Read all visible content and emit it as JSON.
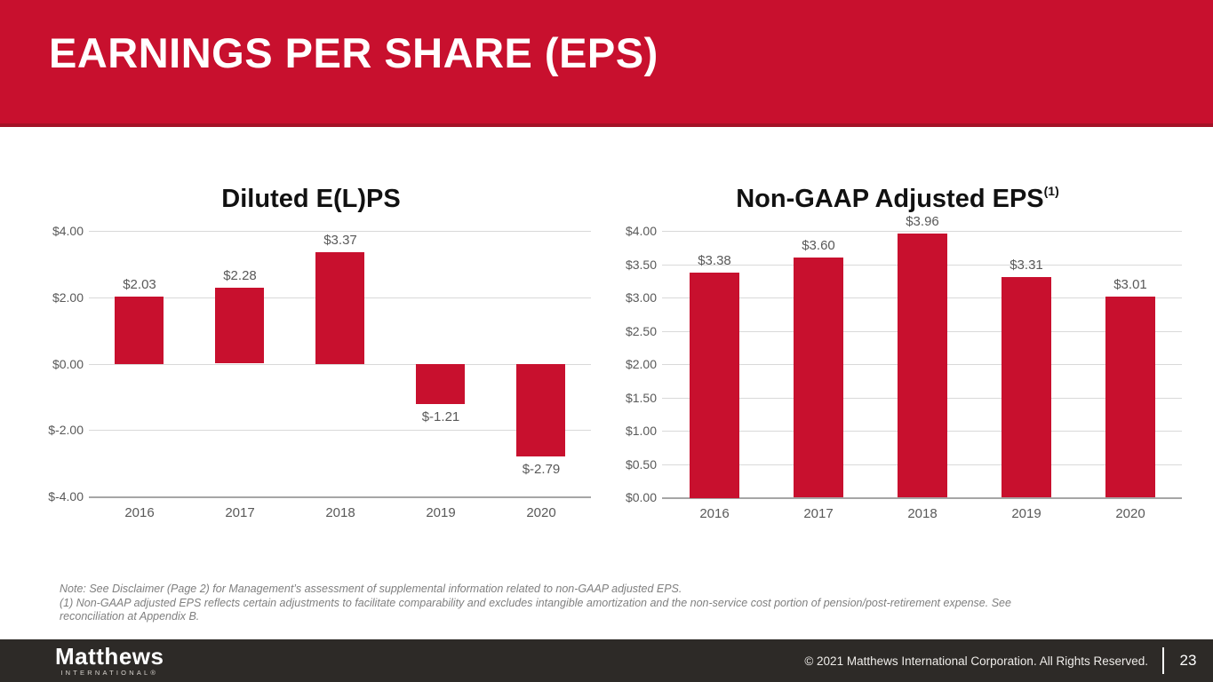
{
  "header": {
    "title": "EARNINGS PER SHARE (EPS)"
  },
  "colors": {
    "brand_red": "#C8102E",
    "banner_border": "#A31226",
    "footer_bg": "#2D2A27",
    "axis_text": "#595959",
    "gridline": "#D9D9D9",
    "axis_line": "#A6A6A6",
    "note_text": "#7F7F7F"
  },
  "chart_data": [
    {
      "type": "bar",
      "title": "Diluted E(L)PS",
      "title_superscript": "",
      "categories": [
        "2016",
        "2017",
        "2018",
        "2019",
        "2020"
      ],
      "values": [
        2.03,
        2.28,
        3.37,
        -1.21,
        -2.79
      ],
      "labels": [
        "$2.03",
        "$2.28",
        "$3.37",
        "$-1.21",
        "$-2.79"
      ],
      "xlabel": "",
      "ylabel": "",
      "ylim": [
        -4,
        4
      ],
      "ytick_step": 2,
      "ytick_labels": [
        "$4.00",
        "$2.00",
        "$0.00",
        "$-2.00",
        "$-4.00"
      ],
      "grid": true,
      "legend": "none",
      "bar_color": "#C8102E"
    },
    {
      "type": "bar",
      "title": "Non-GAAP Adjusted EPS",
      "title_superscript": "(1)",
      "categories": [
        "2016",
        "2017",
        "2018",
        "2019",
        "2020"
      ],
      "values": [
        3.38,
        3.6,
        3.96,
        3.31,
        3.01
      ],
      "labels": [
        "$3.38",
        "$3.60",
        "$3.96",
        "$3.31",
        "$3.01"
      ],
      "xlabel": "",
      "ylabel": "",
      "ylim": [
        0,
        4
      ],
      "ytick_step": 0.5,
      "ytick_labels": [
        "$4.00",
        "$3.50",
        "$3.00",
        "$2.50",
        "$2.00",
        "$1.50",
        "$1.00",
        "$0.50",
        "$0.00"
      ],
      "grid": true,
      "legend": "none",
      "bar_color": "#C8102E"
    }
  ],
  "note": {
    "line1": "Note: See Disclaimer (Page 2) for Management’s assessment of supplemental information related to non-GAAP adjusted EPS.",
    "line2": "(1) Non-GAAP adjusted EPS reflects certain adjustments to facilitate comparability and excludes intangible amortization and the non-service cost portion of pension/post-retirement expense. See",
    "line3": "reconciliation at Appendix B."
  },
  "footer": {
    "logo_line1": "Matthews",
    "logo_line2": "INTERNATIONAL®",
    "copyright": "© 2021 Matthews International Corporation. All Rights Reserved.",
    "page_number": "23"
  }
}
